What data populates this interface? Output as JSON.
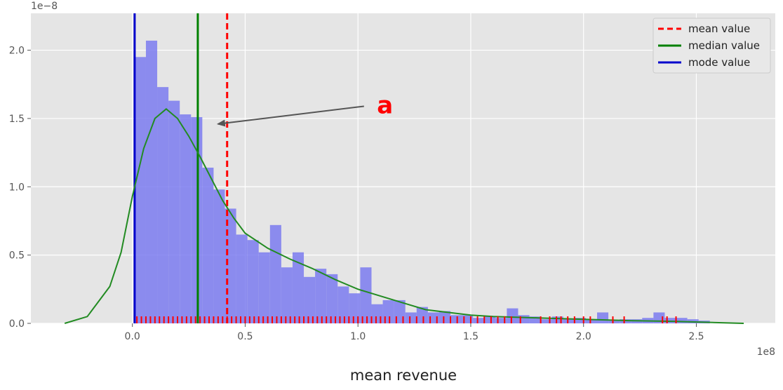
{
  "chart_data": {
    "type": "histogram",
    "style": "ggplot",
    "xlabel": "mean revenue",
    "ylabel": "",
    "x_scale_label": "1e8",
    "y_scale_label": "1e−8",
    "xlim": [
      -0.45,
      2.85
    ],
    "ylim": [
      0,
      2.27
    ],
    "x_ticks": [
      0.0,
      0.5,
      1.0,
      1.5,
      2.0,
      2.5
    ],
    "x_tick_labels": [
      "0.0",
      "0.5",
      "1.0",
      "1.5",
      "2.0",
      "2.5"
    ],
    "y_ticks": [
      0.0,
      0.5,
      1.0,
      1.5,
      2.0
    ],
    "y_tick_labels": [
      "0.0",
      "0.5",
      "1.0",
      "1.5",
      "2.0"
    ],
    "grid": true,
    "legend_position": "top-right",
    "legend": [
      {
        "label": "mean value",
        "color": "#ff0000",
        "style": "dashed"
      },
      {
        "label": "median value",
        "color": "#008000",
        "style": "solid"
      },
      {
        "label": "mode value",
        "color": "#0000cc",
        "style": "solid"
      }
    ],
    "histogram": {
      "color": "#7b7bf0",
      "bin_width": 0.05,
      "bin_start": 0.01,
      "heights": [
        1.95,
        2.07,
        1.73,
        1.63,
        1.53,
        1.51,
        1.14,
        0.98,
        0.84,
        0.65,
        0.61,
        0.52,
        0.72,
        0.41,
        0.52,
        0.34,
        0.4,
        0.36,
        0.27,
        0.22,
        0.41,
        0.14,
        0.17,
        0.17,
        0.08,
        0.12,
        0.08,
        0.09,
        0.06,
        0.06,
        0.04,
        0.05,
        0.04,
        0.11,
        0.06,
        0.05,
        0.03,
        0.05,
        0.03,
        0.04,
        0.03,
        0.08,
        0.02,
        0.03,
        0.03,
        0.04,
        0.08,
        0.04,
        0.04,
        0.03,
        0.02
      ]
    },
    "kde": {
      "color": "#228b22",
      "x": [
        -0.3,
        -0.2,
        -0.1,
        -0.05,
        0.0,
        0.05,
        0.1,
        0.15,
        0.2,
        0.25,
        0.3,
        0.35,
        0.4,
        0.45,
        0.5,
        0.6,
        0.7,
        0.8,
        0.9,
        1.0,
        1.1,
        1.2,
        1.3,
        1.4,
        1.5,
        1.6,
        1.8,
        2.0,
        2.2,
        2.4,
        2.6,
        2.71
      ],
      "y": [
        0.0,
        0.05,
        0.27,
        0.52,
        0.93,
        1.28,
        1.5,
        1.57,
        1.5,
        1.37,
        1.22,
        1.06,
        0.9,
        0.77,
        0.66,
        0.55,
        0.47,
        0.4,
        0.32,
        0.25,
        0.2,
        0.15,
        0.1,
        0.08,
        0.06,
        0.05,
        0.04,
        0.03,
        0.02,
        0.015,
        0.005,
        0.0
      ]
    },
    "vertical_lines": {
      "mean": 0.42,
      "median": 0.29,
      "mode": 0.01
    },
    "rug": {
      "color": "#ff0000",
      "values": [
        0.02,
        0.04,
        0.06,
        0.08,
        0.1,
        0.12,
        0.14,
        0.16,
        0.18,
        0.2,
        0.22,
        0.24,
        0.26,
        0.28,
        0.3,
        0.32,
        0.34,
        0.36,
        0.38,
        0.4,
        0.42,
        0.44,
        0.46,
        0.48,
        0.5,
        0.52,
        0.54,
        0.56,
        0.58,
        0.6,
        0.62,
        0.64,
        0.66,
        0.68,
        0.7,
        0.72,
        0.74,
        0.76,
        0.78,
        0.8,
        0.82,
        0.84,
        0.86,
        0.88,
        0.9,
        0.92,
        0.94,
        0.96,
        0.98,
        1.0,
        1.02,
        1.04,
        1.06,
        1.08,
        1.1,
        1.12,
        1.14,
        1.17,
        1.2,
        1.23,
        1.26,
        1.29,
        1.32,
        1.35,
        1.38,
        1.41,
        1.44,
        1.47,
        1.5,
        1.53,
        1.56,
        1.59,
        1.62,
        1.65,
        1.68,
        1.72,
        1.81,
        1.85,
        1.88,
        1.9,
        1.93,
        1.96,
        2.0,
        2.03,
        2.13,
        2.18,
        2.35,
        2.37,
        2.41
      ]
    },
    "annotation": {
      "text": "a",
      "color": "#ff0000",
      "text_x": 1.12,
      "text_y": 1.6,
      "arrow_to_x": 0.38,
      "arrow_to_y": 1.46
    }
  }
}
